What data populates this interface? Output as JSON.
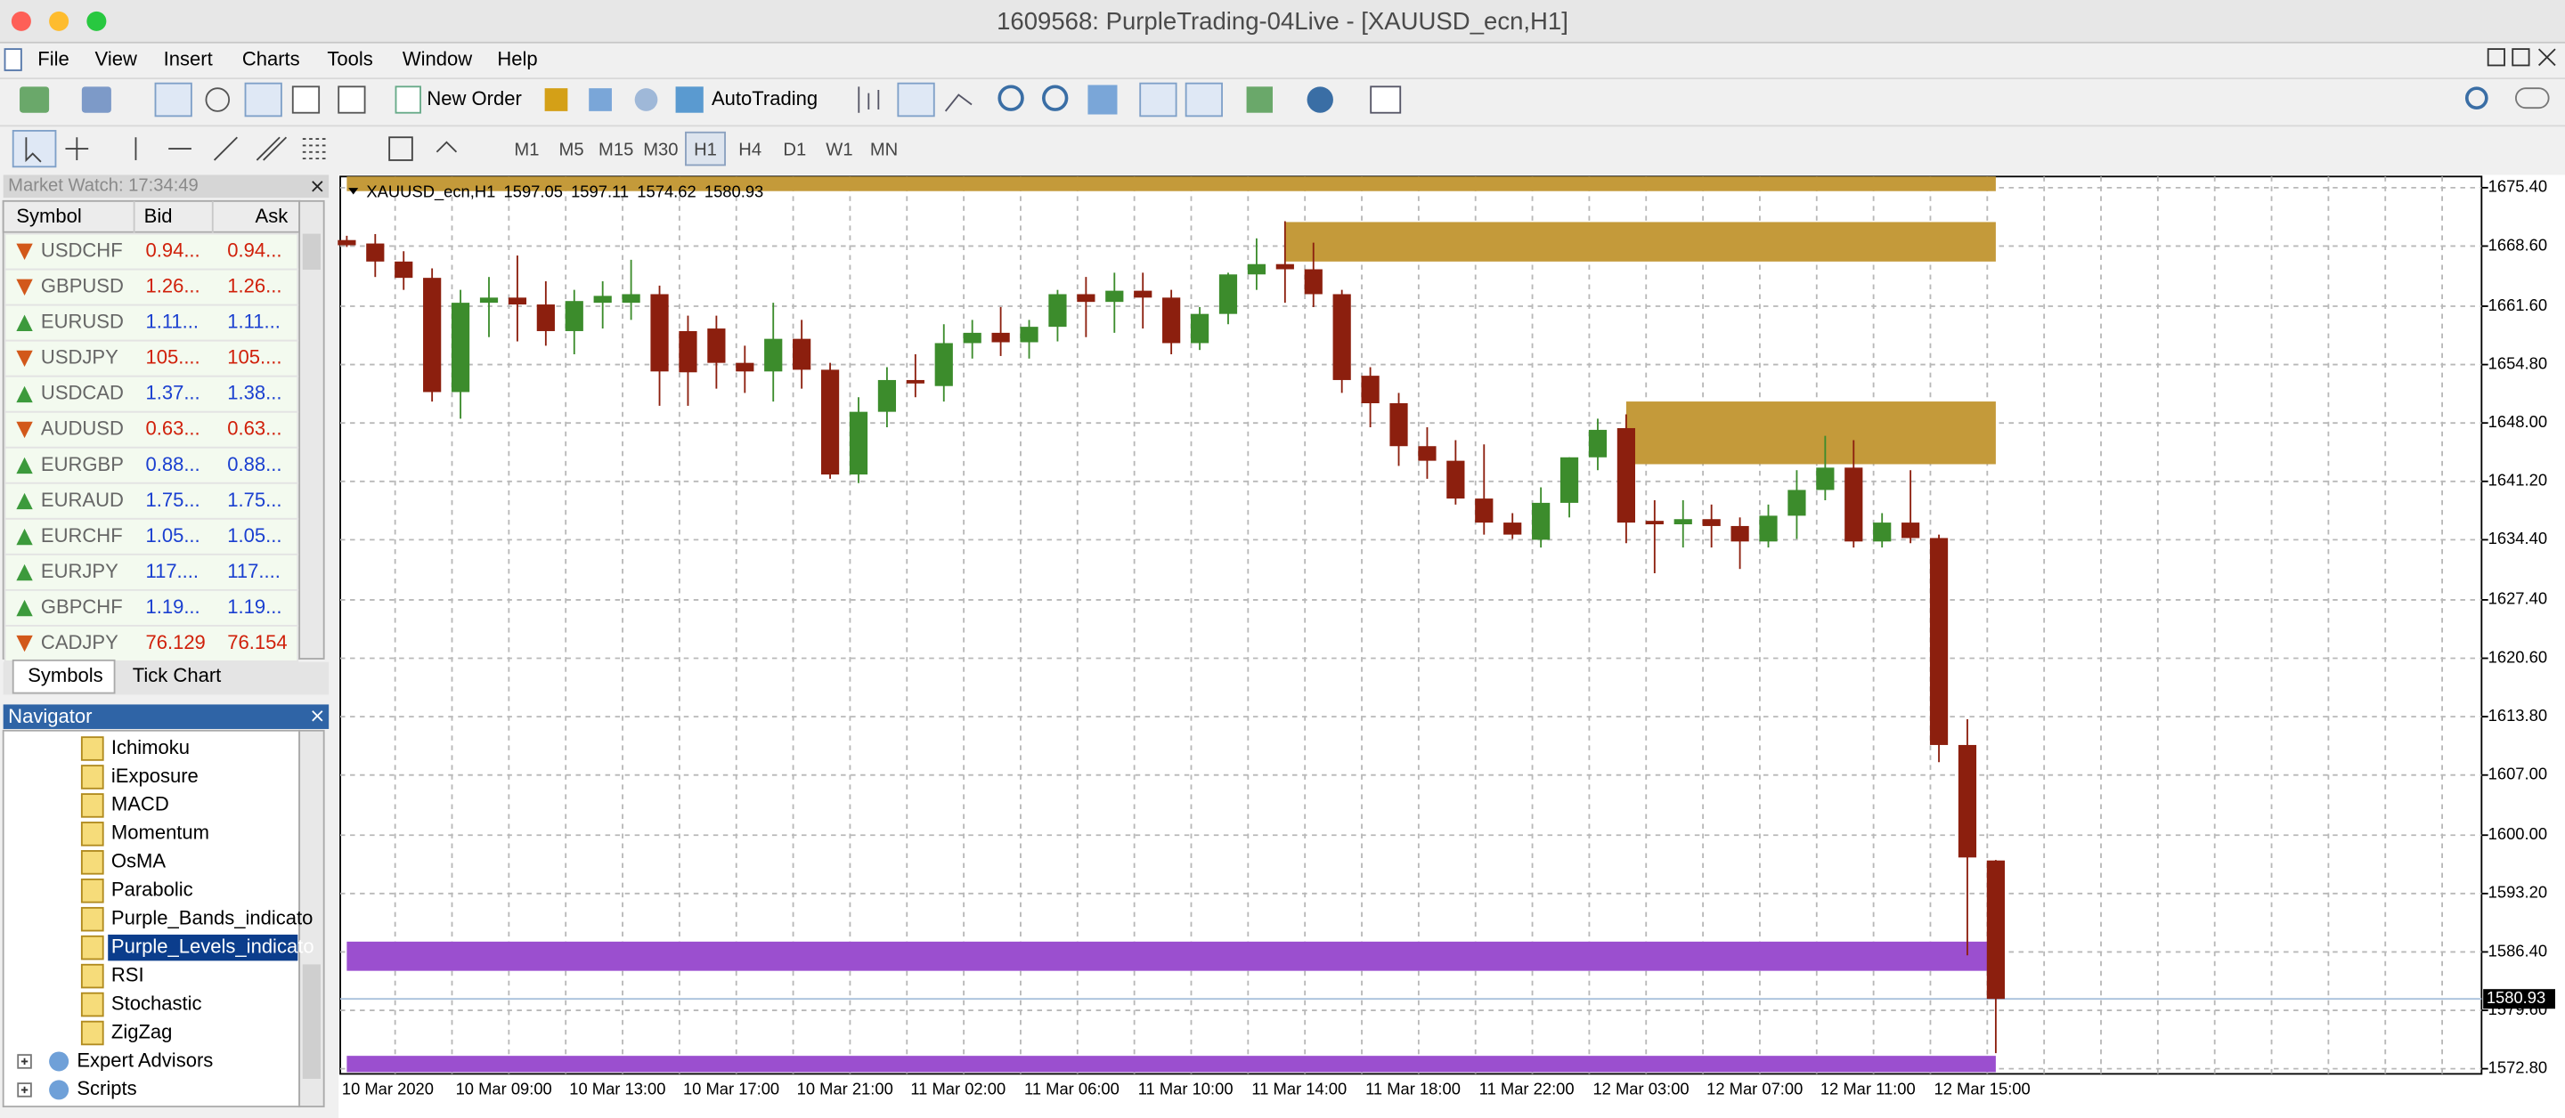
{
  "window": {
    "title": "1609568: PurpleTrading-04Live - [XAUUSD_ecn,H1]"
  },
  "menu": [
    "File",
    "View",
    "Insert",
    "Charts",
    "Tools",
    "Window",
    "Help"
  ],
  "toolbar": {
    "new_order": "New Order",
    "auto_trading": "AutoTrading",
    "timeframes": [
      "M1",
      "M5",
      "M15",
      "M30",
      "H1",
      "H4",
      "D1",
      "W1",
      "MN"
    ],
    "active_timeframe": 4
  },
  "market_watch": {
    "title": "Market Watch: 17:34:49",
    "columns": [
      "Symbol",
      "Bid",
      "Ask"
    ],
    "rows": [
      {
        "symbol": "USDCHF",
        "bid": "0.94...",
        "ask": "0.94...",
        "direction": "down"
      },
      {
        "symbol": "GBPUSD",
        "bid": "1.26...",
        "ask": "1.26...",
        "direction": "down"
      },
      {
        "symbol": "EURUSD",
        "bid": "1.11...",
        "ask": "1.11...",
        "direction": "up"
      },
      {
        "symbol": "USDJPY",
        "bid": "105....",
        "ask": "105....",
        "direction": "down"
      },
      {
        "symbol": "USDCAD",
        "bid": "1.37...",
        "ask": "1.38...",
        "direction": "up"
      },
      {
        "symbol": "AUDUSD",
        "bid": "0.63...",
        "ask": "0.63...",
        "direction": "down"
      },
      {
        "symbol": "EURGBP",
        "bid": "0.88...",
        "ask": "0.88...",
        "direction": "up"
      },
      {
        "symbol": "EURAUD",
        "bid": "1.75...",
        "ask": "1.75...",
        "direction": "up"
      },
      {
        "symbol": "EURCHF",
        "bid": "1.05...",
        "ask": "1.05...",
        "direction": "up"
      },
      {
        "symbol": "EURJPY",
        "bid": "117....",
        "ask": "117....",
        "direction": "up"
      },
      {
        "symbol": "GBPCHF",
        "bid": "1.19...",
        "ask": "1.19...",
        "direction": "up"
      },
      {
        "symbol": "CADJPY",
        "bid": "76.129",
        "ask": "76.154",
        "direction": "down"
      }
    ],
    "tabs": [
      "Symbols",
      "Tick Chart"
    ]
  },
  "navigator": {
    "title": "Navigator",
    "selected": 7,
    "items": [
      {
        "label": "Ichimoku",
        "kind": "indicator"
      },
      {
        "label": "iExposure",
        "kind": "indicator"
      },
      {
        "label": "MACD",
        "kind": "indicator"
      },
      {
        "label": "Momentum",
        "kind": "indicator"
      },
      {
        "label": "OsMA",
        "kind": "indicator"
      },
      {
        "label": "Parabolic",
        "kind": "indicator"
      },
      {
        "label": "Purple_Bands_indicato",
        "kind": "indicator"
      },
      {
        "label": "Purple_Levels_indicato",
        "kind": "indicator"
      },
      {
        "label": "RSI",
        "kind": "indicator"
      },
      {
        "label": "Stochastic",
        "kind": "indicator"
      },
      {
        "label": "ZigZag",
        "kind": "indicator"
      },
      {
        "label": "Expert Advisors",
        "kind": "folder"
      },
      {
        "label": "Scripts",
        "kind": "folder"
      }
    ]
  },
  "chart_data": {
    "type": "candlestick",
    "symbol": "XAUUSD_ecn,H1",
    "categories": [
      "10 Mar 2020",
      null,
      null,
      null,
      "10 Mar 09:00",
      null,
      null,
      null,
      "10 Mar 13:00",
      null,
      null,
      null,
      "10 Mar 17:00",
      null,
      null,
      null,
      "10 Mar 21:00",
      null,
      null,
      null,
      "11 Mar 02:00",
      null,
      null,
      null,
      "11 Mar 06:00",
      null,
      null,
      null,
      "11 Mar 10:00",
      null,
      null,
      null,
      "11 Mar 14:00",
      null,
      null,
      null,
      "11 Mar 18:00",
      null,
      null,
      null,
      "11 Mar 22:00",
      null,
      null,
      null,
      "12 Mar 03:00",
      null,
      null,
      null,
      "12 Mar 07:00",
      null,
      null,
      null,
      "12 Mar 11:00",
      null,
      null,
      null,
      "12 Mar 15:00",
      null,
      null
    ],
    "open": [
      1669.3,
      1668.9,
      1666.8,
      1664.9,
      1651.6,
      1662.0,
      1662.6,
      1661.8,
      1658.7,
      1662.0,
      1662.0,
      1663.0,
      1658.7,
      1659.0,
      1655.0,
      1654.0,
      1657.8,
      1654.2,
      1642.0,
      1649.3,
      1653.0,
      1652.3,
      1657.3,
      1658.5,
      1657.4,
      1659.2,
      1663.0,
      1662.1,
      1663.4,
      1662.6,
      1657.3,
      1660.7,
      1665.3,
      1666.5,
      1665.9,
      1663.0,
      1653.5,
      1650.3,
      1645.3,
      1643.6,
      1639.2,
      1636.4,
      1634.4,
      1638.7,
      1644.0,
      1647.4,
      1636.6,
      1636.2,
      1636.8,
      1636.0,
      1634.2,
      1637.2,
      1640.2,
      1642.8,
      1634.2,
      1636.4,
      1634.6,
      1610.5,
      1597.05
    ],
    "high": [
      1669.8,
      1670.0,
      1668.0,
      1666.0,
      1663.5,
      1665.0,
      1667.5,
      1664.5,
      1663.5,
      1664.5,
      1667.0,
      1664.0,
      1660.5,
      1660.5,
      1657.0,
      1662.0,
      1660.0,
      1655.0,
      1651.0,
      1654.5,
      1656.0,
      1659.5,
      1660.0,
      1661.5,
      1660.0,
      1663.5,
      1665.0,
      1665.5,
      1665.5,
      1663.5,
      1661.5,
      1665.5,
      1669.5,
      1671.5,
      1669.0,
      1663.5,
      1654.5,
      1651.5,
      1647.5,
      1646.0,
      1645.5,
      1637.5,
      1640.5,
      1644.0,
      1648.5,
      1649.0,
      1639.0,
      1639.0,
      1638.5,
      1637.0,
      1638.5,
      1642.5,
      1646.5,
      1646.0,
      1637.5,
      1642.5,
      1635.0,
      1613.5,
      1597.11
    ],
    "low": [
      1668.5,
      1665.0,
      1663.5,
      1650.5,
      1648.5,
      1658.0,
      1657.5,
      1657.0,
      1656.0,
      1659.0,
      1660.0,
      1650.0,
      1650.0,
      1652.0,
      1651.5,
      1650.5,
      1652.0,
      1641.5,
      1641.0,
      1647.5,
      1651.0,
      1650.5,
      1655.5,
      1655.8,
      1655.5,
      1657.5,
      1658.0,
      1658.5,
      1659.0,
      1656.0,
      1656.5,
      1659.5,
      1663.5,
      1662.0,
      1661.5,
      1651.5,
      1647.5,
      1643.0,
      1641.5,
      1638.5,
      1635.0,
      1634.5,
      1633.5,
      1637.0,
      1642.5,
      1634.0,
      1630.5,
      1633.5,
      1633.5,
      1631.0,
      1633.5,
      1634.5,
      1639.0,
      1633.5,
      1633.5,
      1634.0,
      1608.5,
      1586.0,
      1574.62
    ],
    "close": [
      1668.7,
      1666.8,
      1664.9,
      1651.6,
      1662.0,
      1662.6,
      1661.8,
      1658.7,
      1662.2,
      1662.8,
      1663.0,
      1654.0,
      1653.9,
      1655.0,
      1654.0,
      1657.8,
      1654.2,
      1642.0,
      1649.3,
      1653.0,
      1652.6,
      1657.3,
      1658.5,
      1657.4,
      1659.2,
      1663.0,
      1662.1,
      1663.4,
      1662.6,
      1657.3,
      1660.7,
      1665.3,
      1666.5,
      1665.9,
      1663.0,
      1653.0,
      1650.3,
      1645.3,
      1643.6,
      1639.2,
      1636.4,
      1635.0,
      1638.7,
      1644.0,
      1647.2,
      1636.4,
      1636.2,
      1636.8,
      1636.0,
      1634.2,
      1637.2,
      1640.2,
      1642.8,
      1634.2,
      1636.4,
      1634.6,
      1610.5,
      1597.4,
      1580.93
    ],
    "up_color": "#3c8c2c",
    "down_color": "#8c1f0e",
    "grid": true,
    "price_line_color": "#a8c0dc",
    "ylim": [
      1572.2,
      1676.7
    ],
    "yticks": [
      {
        "value": 1675.4,
        "label": "1675.40"
      },
      {
        "value": 1668.6,
        "label": "1668.60"
      },
      {
        "value": 1661.6,
        "label": "1661.60"
      },
      {
        "value": 1654.8,
        "label": "1654.80"
      },
      {
        "value": 1648.0,
        "label": "1648.00"
      },
      {
        "value": 1641.2,
        "label": "1641.20"
      },
      {
        "value": 1634.4,
        "label": "1634.40"
      },
      {
        "value": 1627.4,
        "label": "1627.40"
      },
      {
        "value": 1620.6,
        "label": "1620.60"
      },
      {
        "value": 1613.8,
        "label": "1613.80"
      },
      {
        "value": 1607.0,
        "label": "1607.00"
      },
      {
        "value": 1600.0,
        "label": "1600.00"
      },
      {
        "value": 1593.2,
        "label": "1593.20"
      },
      {
        "value": 1586.4,
        "label": "1586.40"
      },
      {
        "value": 1579.6,
        "label": "1579.60"
      },
      {
        "value": 1572.8,
        "label": "1572.80"
      }
    ],
    "zones": [
      {
        "color": "#c49a3a",
        "low": 1675.0,
        "high": 1676.7,
        "start": 0,
        "end": 58
      },
      {
        "color": "#c49a3a",
        "low": 1666.8,
        "high": 1671.4,
        "start": 33,
        "end": 58
      },
      {
        "color": "#c49a3a",
        "low": 1643.2,
        "high": 1650.5,
        "start": 45,
        "end": 58
      },
      {
        "color": "#9b4fcf",
        "low": 1584.2,
        "high": 1587.6,
        "start": 0,
        "end": 58
      },
      {
        "color": "#9b4fcf",
        "low": 1572.4,
        "high": 1574.3,
        "start": 0,
        "end": 58
      }
    ]
  }
}
